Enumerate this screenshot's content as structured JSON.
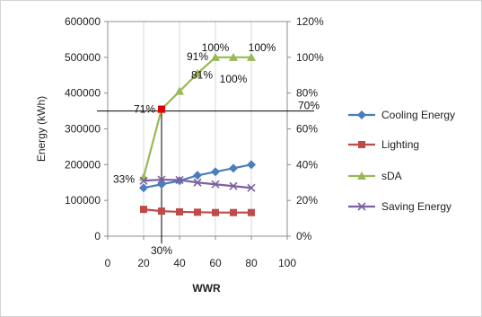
{
  "chart_data": {
    "type": "line",
    "x": [
      20,
      30,
      40,
      50,
      60,
      70,
      80
    ],
    "xlim": [
      0,
      100
    ],
    "xticks": [
      "0",
      "20",
      "40",
      "60",
      "80",
      "100"
    ],
    "xlabel": "WWR",
    "ylabel": "Energy (kWh)",
    "ylim": [
      0,
      600000
    ],
    "yticks": [
      "0",
      "100000",
      "200000",
      "300000",
      "400000",
      "500000",
      "600000"
    ],
    "y2lim": [
      0,
      1.2
    ],
    "y2ticks": [
      "0%",
      "20%",
      "40%",
      "60%",
      "80%",
      "100%",
      "120%"
    ],
    "grid": "vertical only, light gray",
    "legend_position": "right",
    "series": [
      {
        "name": "Cooling Energy",
        "axis": "left",
        "color": "#4a7ebb",
        "marker": "diamond",
        "values": [
          135000,
          145000,
          155000,
          170000,
          180000,
          190000,
          200000
        ]
      },
      {
        "name": "Lighting",
        "axis": "left",
        "color": "#be4b48",
        "marker": "square",
        "values": [
          75000,
          70000,
          68000,
          67000,
          66000,
          66000,
          66000
        ]
      },
      {
        "name": "sDA",
        "axis": "right",
        "color": "#98b954",
        "marker": "triangle",
        "values": [
          0.33,
          0.71,
          0.81,
          0.91,
          1.0,
          1.0,
          1.0
        ]
      },
      {
        "name": "Saving Energy",
        "axis": "left",
        "color": "#7d60a0",
        "marker": "x",
        "values": [
          155000,
          158000,
          157000,
          150000,
          145000,
          140000,
          135000
        ]
      }
    ],
    "highlight_point": {
      "x": 30,
      "y2": 0.71,
      "color": "#e00000"
    },
    "reference_lines": {
      "horizontal_right_axis": "70%",
      "vertical_x": "30%"
    },
    "annotations": [
      {
        "text": "33%",
        "x": 20,
        "y2": 0.33
      },
      {
        "text": "71%",
        "x": 30,
        "y2": 0.71
      },
      {
        "text": "81%",
        "x": 40,
        "y2": 0.81
      },
      {
        "text": "91%",
        "x": 50,
        "y2": 0.91
      },
      {
        "text": "100%",
        "x": 60,
        "y2": 1.0
      },
      {
        "text": "100%",
        "x": 70,
        "y2": 1.0
      },
      {
        "text": "100%",
        "x": 80,
        "y2": 1.0
      },
      {
        "text": "70%",
        "y2": 0.7
      },
      {
        "text": "30%",
        "x": 30
      }
    ]
  }
}
